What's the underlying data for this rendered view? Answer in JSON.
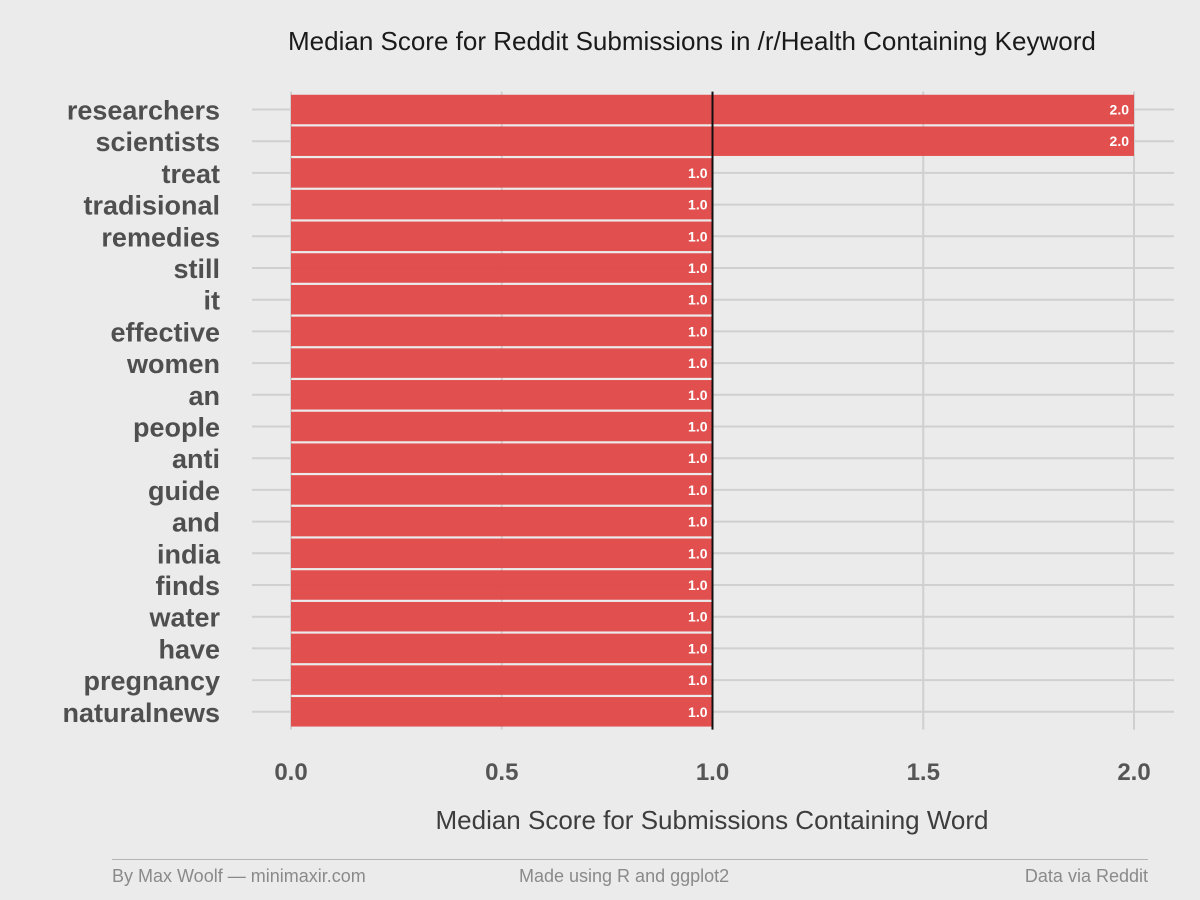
{
  "chart_data": {
    "type": "bar",
    "orientation": "horizontal",
    "title": "Median Score for Reddit Submissions in /r/Health Containing Keyword",
    "xlabel": "Median Score for Submissions Containing Word",
    "ylabel": "",
    "categories": [
      "researchers",
      "scientists",
      "treat",
      "tradisional",
      "remedies",
      "still",
      "it",
      "effective",
      "women",
      "an",
      "people",
      "anti",
      "guide",
      "and",
      "india",
      "finds",
      "water",
      "have",
      "pregnancy",
      "naturalnews"
    ],
    "values": [
      2.0,
      2.0,
      1.0,
      1.0,
      1.0,
      1.0,
      1.0,
      1.0,
      1.0,
      1.0,
      1.0,
      1.0,
      1.0,
      1.0,
      1.0,
      1.0,
      1.0,
      1.0,
      1.0,
      1.0
    ],
    "value_labels": [
      "2.0",
      "2.0",
      "1.0",
      "1.0",
      "1.0",
      "1.0",
      "1.0",
      "1.0",
      "1.0",
      "1.0",
      "1.0",
      "1.0",
      "1.0",
      "1.0",
      "1.0",
      "1.0",
      "1.0",
      "1.0",
      "1.0",
      "1.0"
    ],
    "xlim": [
      0,
      2.0
    ],
    "x_ticks": [
      0,
      0.5,
      1.0,
      1.5,
      2.0
    ],
    "x_tick_labels": [
      "0.0",
      "0.5",
      "1.0",
      "1.5",
      "2.0"
    ],
    "reference_line": 1.0,
    "grid": true,
    "legend": "none",
    "colors": {
      "bar": "#e04d4a",
      "background": "#ebebeb",
      "grid": "#d0d0d0",
      "reference_line": "#111111"
    }
  },
  "footer": {
    "left": "By Max Woolf — minimaxir.com",
    "center": "Made using R and ggplot2",
    "right": "Data via Reddit"
  }
}
